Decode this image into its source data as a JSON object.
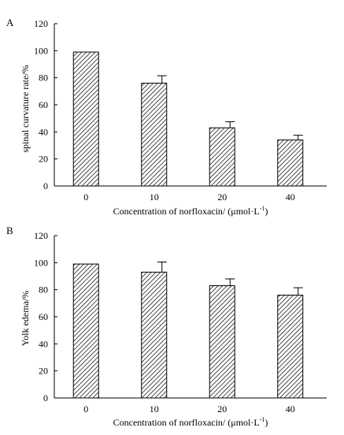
{
  "chart_data": [
    {
      "type": "bar",
      "panel_label": "A",
      "categories": [
        "0",
        "10",
        "20",
        "40"
      ],
      "values": [
        99,
        76,
        43,
        34
      ],
      "error": [
        0,
        5.5,
        4.5,
        3.5
      ],
      "xlabel": "Concentration of norfloxacin/ (μmol·L",
      "xlabel_unit_sup": "-1",
      "xlabel_close": ")",
      "ylabel": "spinal curvature rate/%",
      "ylim": [
        0,
        120
      ],
      "yticks": [
        "0",
        "20",
        "40",
        "60",
        "80",
        "100",
        "120"
      ],
      "bar_fill": "diagonal-hatch",
      "grid": false,
      "legend": "none"
    },
    {
      "type": "bar",
      "panel_label": "B",
      "categories": [
        "0",
        "10",
        "20",
        "40"
      ],
      "values": [
        99,
        93,
        83,
        76
      ],
      "error": [
        0,
        7.5,
        5,
        5.5
      ],
      "xlabel": "Concentration of norfloxacin/ (μmol·L",
      "xlabel_unit_sup": "-1",
      "xlabel_close": ")",
      "ylabel": "Yolk edema/%",
      "ylim": [
        0,
        120
      ],
      "yticks": [
        "0",
        "20",
        "40",
        "60",
        "80",
        "100",
        "120"
      ],
      "bar_fill": "diagonal-hatch",
      "grid": false,
      "legend": "none"
    }
  ]
}
